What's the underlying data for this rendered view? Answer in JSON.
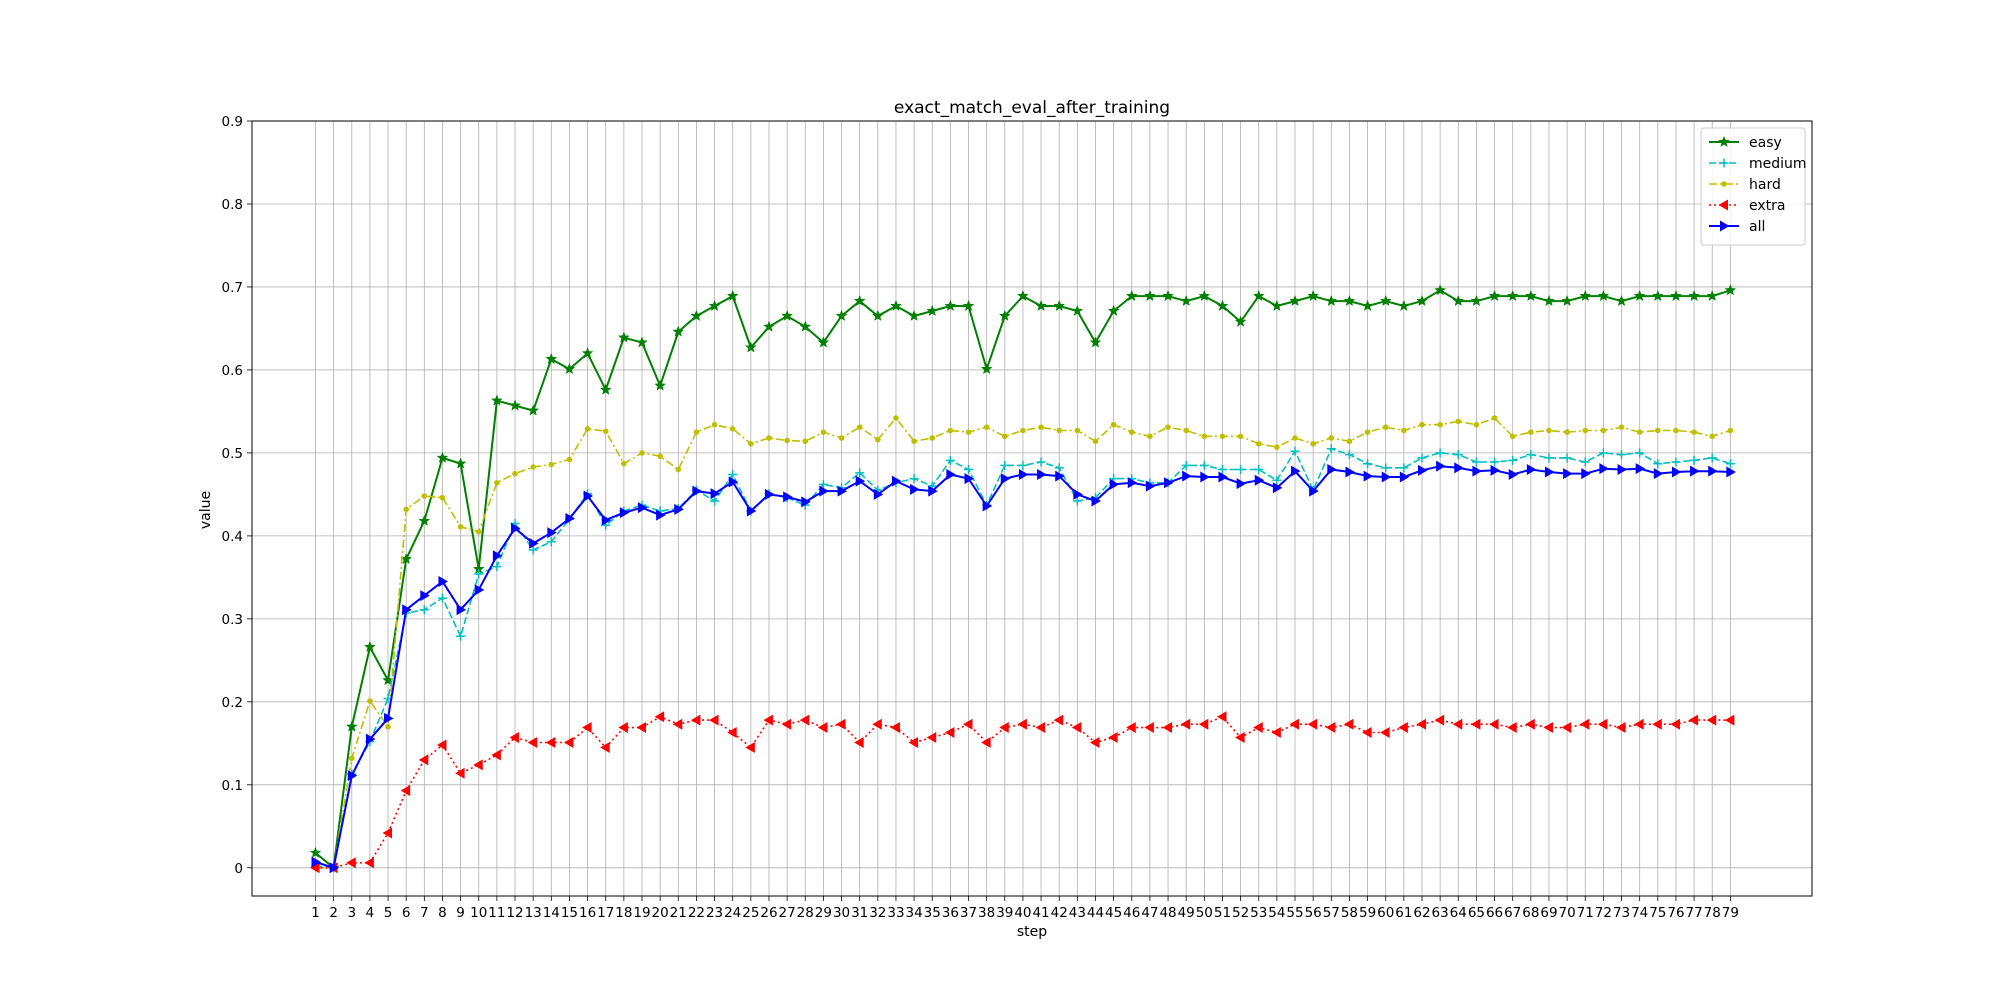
{
  "chart_data": {
    "type": "line",
    "title": "exact_match_eval_after_training",
    "xlabel": "step",
    "ylabel": "value",
    "x": [
      1,
      2,
      3,
      4,
      5,
      6,
      7,
      8,
      9,
      10,
      11,
      12,
      13,
      14,
      15,
      16,
      17,
      18,
      19,
      20,
      21,
      22,
      23,
      24,
      25,
      26,
      27,
      28,
      29,
      30,
      31,
      32,
      33,
      34,
      35,
      36,
      37,
      38,
      39,
      40,
      41,
      42,
      43,
      44,
      45,
      46,
      47,
      48,
      49,
      50,
      51,
      52,
      53,
      54,
      55,
      56,
      57,
      58,
      59,
      60,
      61,
      62,
      63,
      64,
      65,
      66,
      67,
      68,
      69,
      70,
      71,
      72,
      73,
      74,
      75,
      76,
      77,
      78,
      79
    ],
    "xlim": [
      -2.5,
      83.5
    ],
    "ylim": [
      -0.034,
      0.9
    ],
    "yticks": [
      0,
      0.1,
      0.2,
      0.3,
      0.4,
      0.5,
      0.6,
      0.7,
      0.8,
      0.9
    ],
    "ytick_labels": [
      "0",
      "0.1",
      "0.2",
      "0.3",
      "0.4",
      "0.5",
      "0.6",
      "0.7",
      "0.8",
      "0.9"
    ],
    "grid": true,
    "legend_position": "top-right",
    "series": [
      {
        "name": "easy",
        "color": "#008000",
        "linestyle": "solid",
        "marker": "star",
        "values": [
          0.018,
          0.0,
          0.17,
          0.266,
          0.226,
          0.372,
          0.418,
          0.494,
          0.487,
          0.36,
          0.563,
          0.557,
          0.551,
          0.613,
          0.601,
          0.62,
          0.576,
          0.639,
          0.633,
          0.581,
          0.646,
          0.665,
          0.677,
          0.689,
          0.627,
          0.652,
          0.665,
          0.652,
          0.633,
          0.665,
          0.683,
          0.665,
          0.677,
          0.665,
          0.671,
          0.677,
          0.677,
          0.601,
          0.665,
          0.689,
          0.677,
          0.677,
          0.671,
          0.633,
          0.671,
          0.689,
          0.689,
          0.689,
          0.683,
          0.689,
          0.677,
          0.658,
          0.689,
          0.677,
          0.683,
          0.689,
          0.683,
          0.683,
          0.677,
          0.683,
          0.677,
          0.683,
          0.696,
          0.683,
          0.683,
          0.689,
          0.689,
          0.689,
          0.683,
          0.683,
          0.689,
          0.689,
          0.683,
          0.689,
          0.689,
          0.689,
          0.689,
          0.689,
          0.696
        ]
      },
      {
        "name": "medium",
        "color": "#00bfbf",
        "linestyle": "dashed",
        "marker": "plus",
        "values": [
          0.002,
          0.0,
          0.113,
          0.152,
          0.204,
          0.307,
          0.311,
          0.325,
          0.279,
          0.354,
          0.363,
          0.415,
          0.383,
          0.393,
          0.42,
          0.451,
          0.413,
          0.43,
          0.437,
          0.43,
          0.433,
          0.455,
          0.442,
          0.474,
          0.43,
          0.451,
          0.446,
          0.437,
          0.462,
          0.458,
          0.476,
          0.455,
          0.464,
          0.469,
          0.46,
          0.491,
          0.48,
          0.437,
          0.485,
          0.485,
          0.489,
          0.482,
          0.442,
          0.446,
          0.469,
          0.469,
          0.464,
          0.464,
          0.485,
          0.485,
          0.48,
          0.48,
          0.48,
          0.467,
          0.502,
          0.455,
          0.505,
          0.498,
          0.487,
          0.482,
          0.482,
          0.494,
          0.5,
          0.498,
          0.489,
          0.489,
          0.491,
          0.498,
          0.494,
          0.494,
          0.489,
          0.5,
          0.498,
          0.5,
          0.487,
          0.489,
          0.491,
          0.494,
          0.487
        ]
      },
      {
        "name": "hard",
        "color": "#bfbf00",
        "linestyle": "dashdot",
        "marker": "dot",
        "values": [
          0.0,
          0.0,
          0.132,
          0.201,
          0.17,
          0.432,
          0.448,
          0.446,
          0.411,
          0.405,
          0.464,
          0.475,
          0.483,
          0.486,
          0.492,
          0.529,
          0.526,
          0.487,
          0.5,
          0.496,
          0.48,
          0.525,
          0.534,
          0.529,
          0.511,
          0.518,
          0.515,
          0.514,
          0.525,
          0.518,
          0.531,
          0.516,
          0.542,
          0.514,
          0.518,
          0.527,
          0.525,
          0.531,
          0.52,
          0.527,
          0.531,
          0.527,
          0.527,
          0.514,
          0.534,
          0.525,
          0.52,
          0.531,
          0.527,
          0.52,
          0.52,
          0.52,
          0.511,
          0.507,
          0.518,
          0.511,
          0.518,
          0.514,
          0.525,
          0.531,
          0.527,
          0.534,
          0.534,
          0.538,
          0.534,
          0.542,
          0.52,
          0.525,
          0.527,
          0.525,
          0.527,
          0.527,
          0.531,
          0.525,
          0.527,
          0.527,
          0.525,
          0.52,
          0.527
        ]
      },
      {
        "name": "extra",
        "color": "#ff0000",
        "linestyle": "dotted",
        "marker": "triangle-left",
        "values": [
          0.0,
          0.0,
          0.006,
          0.006,
          0.042,
          0.093,
          0.13,
          0.148,
          0.114,
          0.124,
          0.136,
          0.157,
          0.151,
          0.151,
          0.151,
          0.169,
          0.145,
          0.169,
          0.169,
          0.182,
          0.173,
          0.178,
          0.178,
          0.163,
          0.145,
          0.178,
          0.173,
          0.178,
          0.169,
          0.173,
          0.151,
          0.173,
          0.169,
          0.151,
          0.157,
          0.163,
          0.173,
          0.151,
          0.169,
          0.173,
          0.169,
          0.178,
          0.169,
          0.151,
          0.157,
          0.169,
          0.169,
          0.169,
          0.173,
          0.173,
          0.182,
          0.157,
          0.169,
          0.163,
          0.173,
          0.173,
          0.169,
          0.173,
          0.163,
          0.163,
          0.169,
          0.173,
          0.178,
          0.173,
          0.173,
          0.173,
          0.169,
          0.173,
          0.169,
          0.169,
          0.173,
          0.173,
          0.169,
          0.173,
          0.173,
          0.173,
          0.178,
          0.178,
          0.178
        ]
      },
      {
        "name": "all",
        "color": "#0000ff",
        "linestyle": "solid",
        "marker": "triangle-right",
        "values": [
          0.007,
          0.0,
          0.111,
          0.155,
          0.18,
          0.311,
          0.328,
          0.345,
          0.311,
          0.335,
          0.376,
          0.409,
          0.391,
          0.404,
          0.421,
          0.448,
          0.419,
          0.428,
          0.434,
          0.425,
          0.432,
          0.454,
          0.451,
          0.465,
          0.43,
          0.45,
          0.447,
          0.441,
          0.454,
          0.454,
          0.466,
          0.45,
          0.466,
          0.456,
          0.454,
          0.474,
          0.469,
          0.436,
          0.469,
          0.474,
          0.474,
          0.472,
          0.45,
          0.442,
          0.462,
          0.464,
          0.46,
          0.464,
          0.472,
          0.471,
          0.471,
          0.463,
          0.467,
          0.458,
          0.478,
          0.454,
          0.48,
          0.477,
          0.472,
          0.471,
          0.471,
          0.479,
          0.484,
          0.482,
          0.478,
          0.479,
          0.474,
          0.48,
          0.477,
          0.475,
          0.475,
          0.481,
          0.48,
          0.481,
          0.475,
          0.477,
          0.478,
          0.478,
          0.477
        ]
      }
    ]
  }
}
